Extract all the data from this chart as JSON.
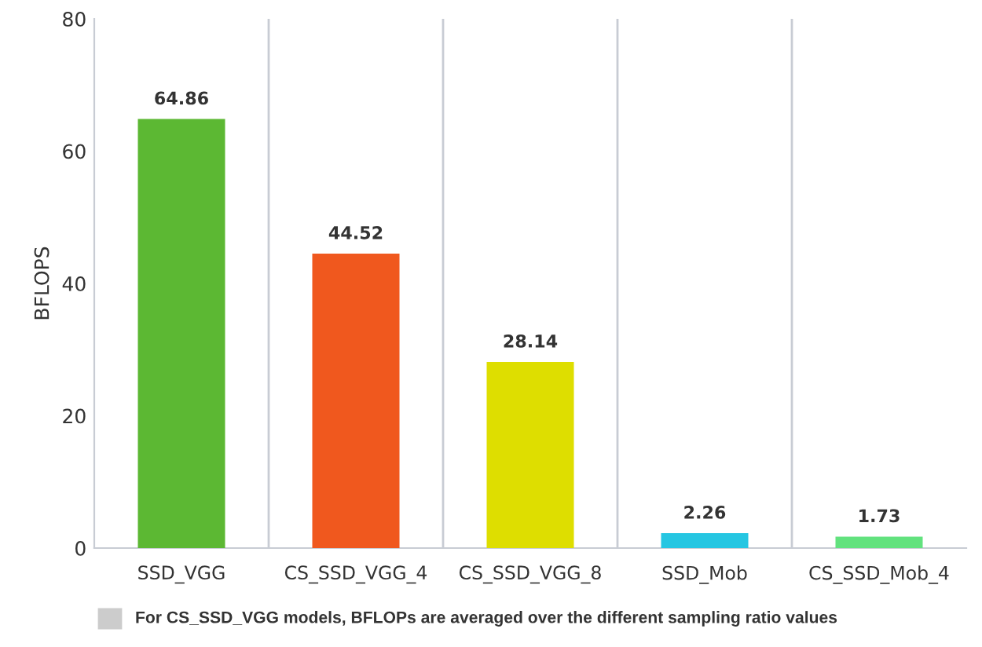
{
  "chart_data": {
    "type": "bar",
    "ylabel": "BFLOPS",
    "categories": [
      "SSD_VGG",
      "CS_SSD_VGG_4",
      "CS_SSD_VGG_8",
      "SSD_Mob",
      "CS_SSD_Mob_4"
    ],
    "values": [
      64.86,
      44.52,
      28.14,
      2.26,
      1.73
    ],
    "colors": [
      "#5cb833",
      "#f0581e",
      "#dede00",
      "#25c6e2",
      "#62e27e"
    ],
    "ylim": [
      0,
      80
    ],
    "yticks": [
      0,
      20,
      40,
      60,
      80
    ],
    "grid": "x",
    "data_labels": true,
    "legend": false,
    "annotations": [
      "For CS_SSD_VGG models, BFLOPs are averaged over the different sampling ratio values"
    ]
  }
}
